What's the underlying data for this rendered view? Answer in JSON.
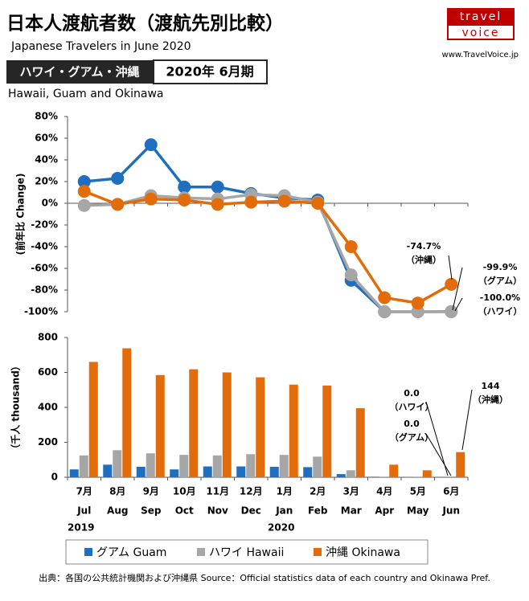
{
  "header": {
    "title": "日本人渡航者数（渡航先別比較）",
    "subtitle": "Japanese Travelers in June 2020",
    "badge_left": "ハワイ・グアム・沖縄",
    "badge_right": "2020年 6月期",
    "caption": "Hawaii, Guam and Okinawa",
    "logo_top": "travel",
    "logo_bottom": "voice",
    "url": "www.TravelVoice.jp"
  },
  "source": "出典：各国の公共統計機関および沖縄県  Source：Official statistics data of each country and Okinawa Pref.",
  "chart_data": [
    {
      "type": "line",
      "y_label": "(前年比  Change)",
      "ylim": [
        -100,
        80
      ],
      "yticks": [
        {
          "value": 80,
          "label": "80%"
        },
        {
          "value": 60,
          "label": "60%"
        },
        {
          "value": 40,
          "label": "40%"
        },
        {
          "value": 20,
          "label": "20%"
        },
        {
          "value": 0,
          "label": "0%"
        },
        {
          "value": -20,
          "label": "-20%"
        },
        {
          "value": -40,
          "label": "-40%"
        },
        {
          "value": -60,
          "label": "-60%"
        },
        {
          "value": -80,
          "label": "-80%"
        },
        {
          "value": -100,
          "label": "-100%"
        }
      ],
      "series": [
        {
          "color": "#1f6fc0",
          "values": [
            20,
            23,
            54,
            15,
            15,
            9,
            5,
            3,
            -71,
            -100,
            -100,
            -99.9
          ],
          "value_labels": [
            null,
            null,
            null,
            null,
            null,
            null,
            null,
            null,
            null,
            null,
            null,
            "-99.9%"
          ],
          "label_notes": [
            null,
            null,
            null,
            null,
            null,
            null,
            null,
            null,
            null,
            null,
            null,
            "（グアム）"
          ]
        },
        {
          "color": "#a6a6a6",
          "values": [
            -2,
            -1,
            7,
            5,
            4,
            8,
            7,
            1,
            -66,
            -100,
            -100,
            -100
          ],
          "value_labels": [
            null,
            null,
            null,
            null,
            null,
            null,
            null,
            null,
            null,
            null,
            null,
            "-100.0%"
          ],
          "label_notes": [
            null,
            null,
            null,
            null,
            null,
            null,
            null,
            null,
            null,
            null,
            null,
            "（ハワイ）"
          ]
        },
        {
          "color": "#e36c0a",
          "values": [
            11,
            -1,
            4,
            3,
            -1,
            1,
            2,
            0,
            -40,
            -87,
            -92,
            -74.7
          ],
          "value_labels": [
            null,
            null,
            null,
            null,
            null,
            null,
            null,
            null,
            null,
            null,
            null,
            "-74.7%"
          ],
          "label_notes": [
            null,
            null,
            null,
            null,
            null,
            null,
            null,
            null,
            null,
            null,
            null,
            "（沖縄）"
          ]
        }
      ]
    },
    {
      "type": "bar",
      "y_label": "（千人  thousand）",
      "ylim": [
        0,
        800
      ],
      "yticks": [
        0,
        200,
        400,
        600,
        800
      ],
      "categories": [
        "7月",
        "8月",
        "9月",
        "10月",
        "11月",
        "12月",
        "1月",
        "2月",
        "3月",
        "4月",
        "5月",
        "6月"
      ],
      "categories_en": [
        "Jul",
        "Aug",
        "Sep",
        "Oct",
        "Nov",
        "Dec",
        "Jan",
        "Feb",
        "Mar",
        "Apr",
        "May",
        "Jun"
      ],
      "years": [
        "2019",
        "2020"
      ],
      "series": [
        {
          "name": "グアム Guam",
          "color": "#1f6fc0",
          "values": [
            45,
            72,
            60,
            45,
            62,
            62,
            60,
            58,
            18,
            3,
            2,
            0
          ],
          "value_labels": [
            null,
            null,
            null,
            null,
            null,
            null,
            null,
            null,
            null,
            null,
            null,
            "0.0"
          ],
          "label_notes": [
            null,
            null,
            null,
            null,
            null,
            null,
            null,
            null,
            null,
            null,
            null,
            "（グアム）"
          ]
        },
        {
          "name": "ハワイ Hawaii",
          "color": "#a6a6a6",
          "values": [
            125,
            155,
            137,
            128,
            125,
            132,
            128,
            118,
            40,
            1,
            1,
            0
          ],
          "value_labels": [
            null,
            null,
            null,
            null,
            null,
            null,
            null,
            null,
            null,
            null,
            null,
            "0.0"
          ],
          "label_notes": [
            null,
            null,
            null,
            null,
            null,
            null,
            null,
            null,
            null,
            null,
            null,
            "（ハワイ）"
          ]
        },
        {
          "name": "沖縄 Okinawa",
          "color": "#e36c0a",
          "values": [
            660,
            738,
            585,
            618,
            600,
            572,
            530,
            525,
            395,
            72,
            40,
            144
          ],
          "label_notes": [
            null,
            null,
            null,
            null,
            null,
            null,
            null,
            null,
            null,
            null,
            null,
            "（沖縄）"
          ]
        }
      ]
    }
  ]
}
